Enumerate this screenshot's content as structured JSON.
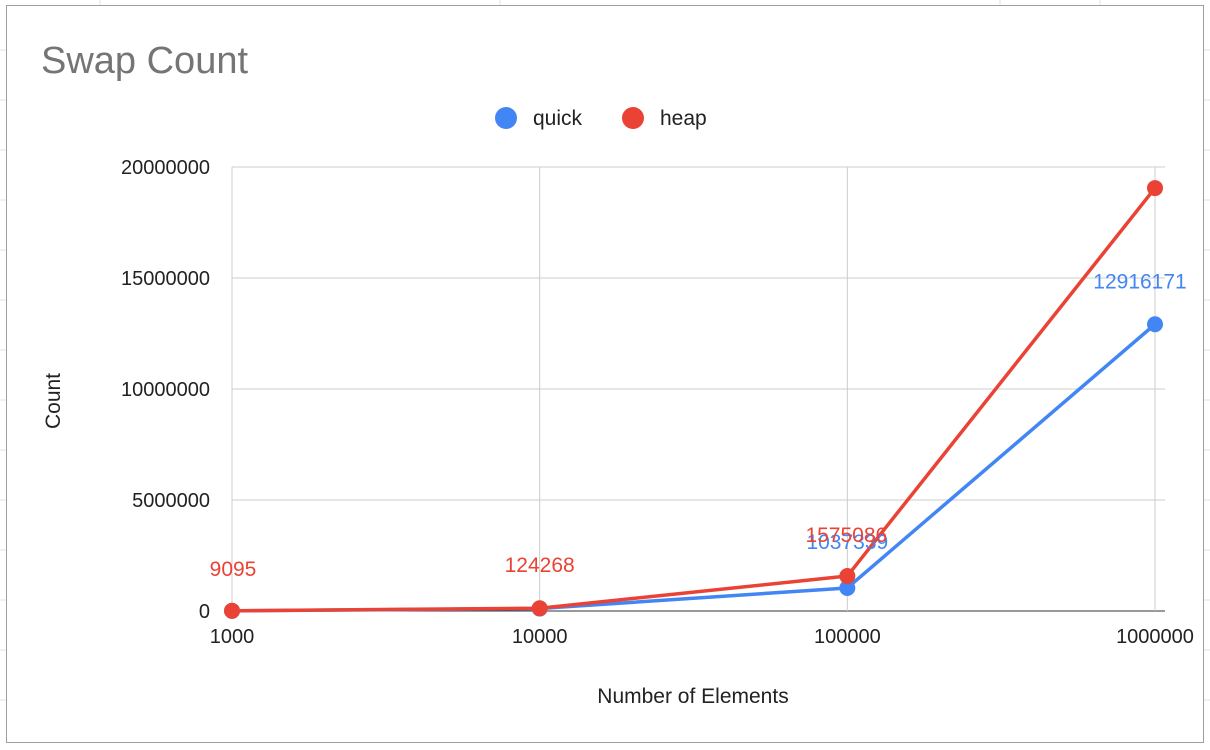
{
  "chart_data": {
    "type": "line",
    "title": "Swap Count",
    "xlabel": "Number of Elements",
    "ylabel": "Count",
    "x": [
      "1000",
      "10000",
      "100000",
      "1000000"
    ],
    "ylim": [
      0,
      20000000
    ],
    "yticks": [
      "0",
      "5000000",
      "10000000",
      "15000000",
      "20000000"
    ],
    "grid": true,
    "legend_position": "top",
    "series": [
      {
        "name": "quick",
        "color": "#4285f4",
        "values": [
          8000,
          110000,
          1037339,
          12916171
        ],
        "labels": [
          "",
          "",
          "1037339",
          "12916171"
        ]
      },
      {
        "name": "heap",
        "color": "#ea4335",
        "values": [
          9095,
          124268,
          1575086,
          19050000
        ],
        "labels": [
          "9095",
          "124268",
          "1575086",
          ""
        ]
      }
    ]
  }
}
